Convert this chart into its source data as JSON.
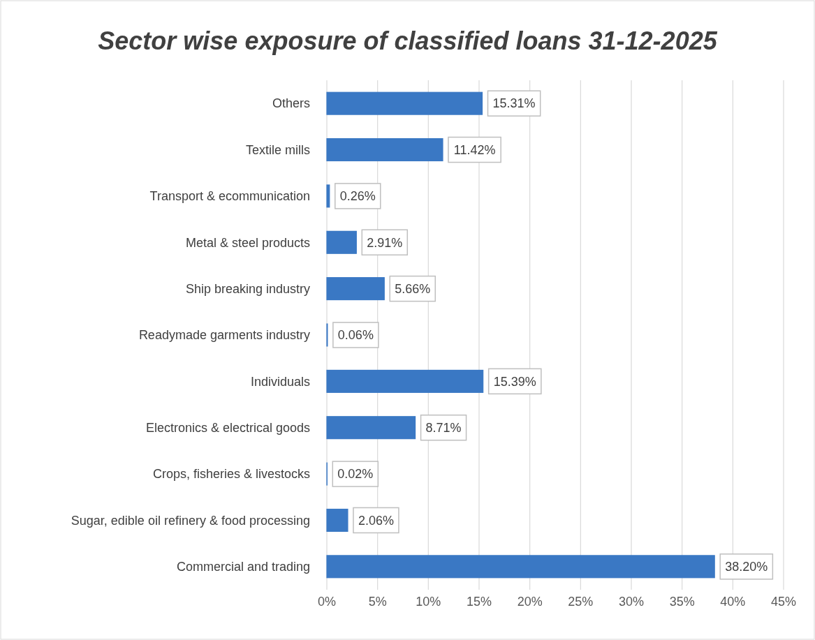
{
  "chart_data": {
    "type": "bar",
    "orientation": "horizontal",
    "title": "Sector wise exposure of classified loans 31-12-2025",
    "categories": [
      "Others",
      "Textile mills",
      "Transport & ecommunication",
      "Metal & steel products",
      "Ship breaking industry",
      "Readymade garments industry",
      "Individuals",
      "Electronics & electrical goods",
      "Crops, fisheries & livestocks",
      "Sugar, edible oil refinery & food processing",
      "Commercial and trading"
    ],
    "values": [
      15.31,
      11.42,
      0.26,
      2.91,
      5.66,
      0.06,
      15.39,
      8.71,
      0.02,
      2.06,
      38.2
    ],
    "value_labels": [
      "15.31%",
      "11.42%",
      "0.26%",
      "2.91%",
      "5.66%",
      "0.06%",
      "15.39%",
      "8.71%",
      "0.02%",
      "2.06%",
      "38.20%"
    ],
    "color": "#3a78c4",
    "xlim": [
      0,
      45
    ],
    "xticks": [
      {
        "value": 0,
        "label": "0%"
      },
      {
        "value": 5,
        "label": "5%"
      },
      {
        "value": 10,
        "label": "10%"
      },
      {
        "value": 15,
        "label": "15%"
      },
      {
        "value": 20,
        "label": "20%"
      },
      {
        "value": 25,
        "label": "25%"
      },
      {
        "value": 30,
        "label": "30%"
      },
      {
        "value": 35,
        "label": "35%"
      },
      {
        "value": 40,
        "label": "40%"
      },
      {
        "value": 45,
        "label": "45%"
      }
    ],
    "grid": "x"
  }
}
